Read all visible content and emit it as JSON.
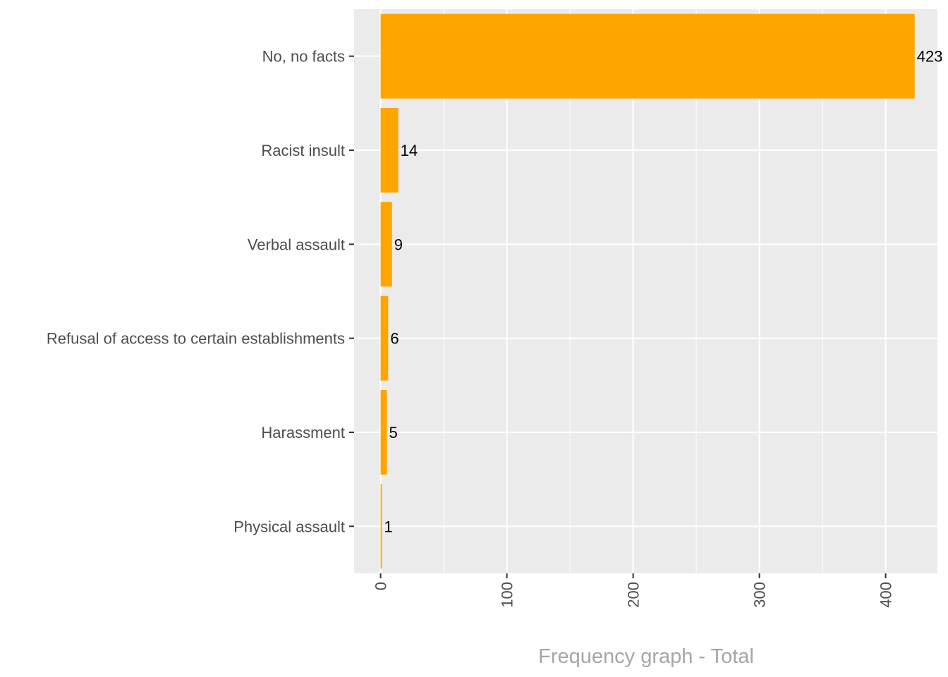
{
  "chart_data": {
    "type": "bar",
    "orientation": "horizontal",
    "categories": [
      "No, no facts",
      "Racist insult",
      "Verbal assault",
      "Refusal of access to certain establishments",
      "Harassment",
      "Physical assault"
    ],
    "values": [
      423,
      14,
      9,
      6,
      5,
      1
    ],
    "data_labels": [
      "423",
      "14",
      "9",
      "6",
      "5",
      "1"
    ],
    "xlabel": "Frequency graph - Total",
    "ylabel": "",
    "xlim": [
      -21,
      441
    ],
    "x_ticks": [
      0,
      100,
      200,
      300,
      400
    ],
    "x_tick_labels": [
      "0",
      "100",
      "200",
      "300",
      "400"
    ],
    "grid": true,
    "legend": "none",
    "colors": {
      "bar": "#ffa500",
      "panel": "#ebebeb",
      "grid": "#ffffff"
    }
  }
}
